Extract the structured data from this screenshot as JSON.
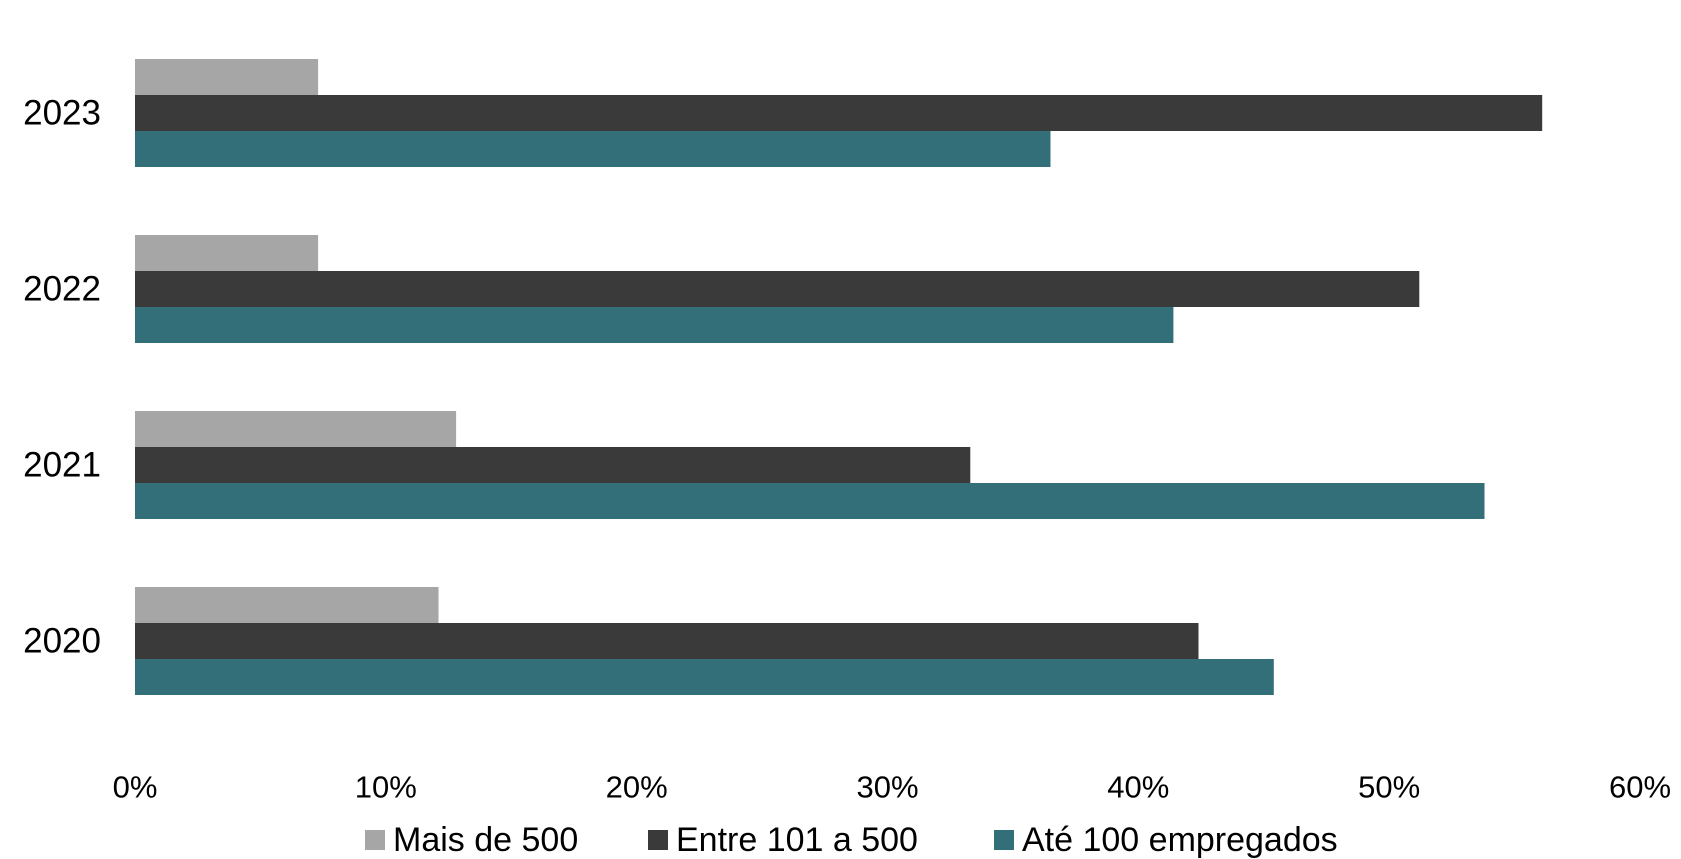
{
  "chart_data": {
    "type": "bar",
    "orientation": "horizontal",
    "categories": [
      "2020",
      "2021",
      "2022",
      "2023"
    ],
    "series": [
      {
        "name": "Mais de 500",
        "color": "#a6a6a6",
        "values": [
          12.1,
          12.8,
          7.3,
          7.3
        ]
      },
      {
        "name": "Entre 101 a 500",
        "color": "#3a3a3b",
        "values": [
          42.4,
          33.3,
          51.2,
          56.1
        ]
      },
      {
        "name": "Até 100 empregados",
        "color": "#336f78",
        "values": [
          45.4,
          53.8,
          41.4,
          36.5
        ]
      }
    ],
    "x_ticks": [
      "0%",
      "10%",
      "20%",
      "30%",
      "40%",
      "50%",
      "60%"
    ],
    "xlim": [
      0,
      60
    ],
    "title": "",
    "xlabel": "",
    "ylabel": "",
    "grid": false,
    "legend": "bottom"
  }
}
